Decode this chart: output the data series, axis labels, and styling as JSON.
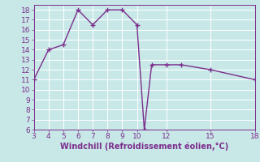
{
  "x": [
    3,
    4,
    5,
    6,
    7,
    8,
    9,
    10,
    10.5,
    11,
    12,
    13,
    15,
    18
  ],
  "y": [
    11,
    14,
    14.5,
    18,
    16.5,
    18,
    18,
    16.5,
    6,
    12.5,
    12.5,
    12.5,
    12,
    11
  ],
  "line_color": "#7b2d8b",
  "marker": "+",
  "marker_size": 4,
  "linewidth": 1.0,
  "xlabel": "Windchill (Refroidissement éolien,°C)",
  "xlabel_color": "#7b2d8b",
  "background_color": "#c8e8e8",
  "grid_color": "#b0d8d8",
  "tick_color": "#7b2d8b",
  "xlim": [
    3,
    18
  ],
  "ylim": [
    6,
    18.5
  ],
  "xticks": [
    3,
    4,
    5,
    6,
    7,
    8,
    9,
    10,
    12,
    15,
    18
  ],
  "yticks": [
    6,
    7,
    8,
    9,
    10,
    11,
    12,
    13,
    14,
    15,
    16,
    17,
    18
  ],
  "xlabel_fontsize": 7,
  "tick_fontsize": 6.5
}
